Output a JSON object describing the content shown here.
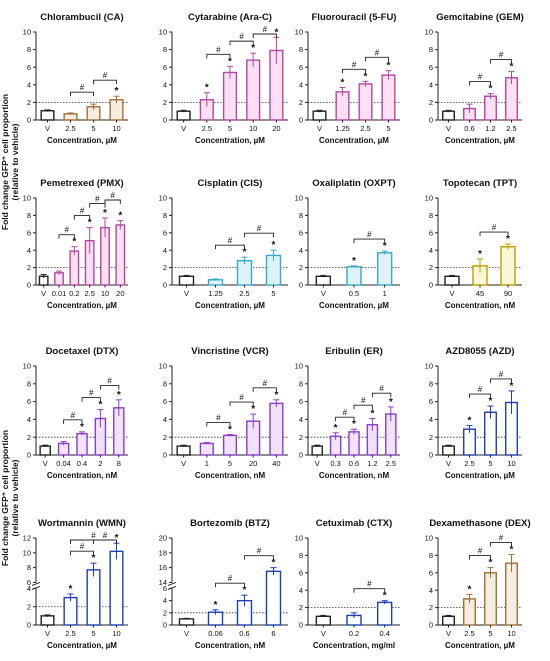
{
  "figure": {
    "ylabel_line1": "Fold change GFP⁺ cell proportion",
    "ylabel_line2": "(relative to vehicle)",
    "significance_symbol": "*",
    "comparison_symbol": "#"
  },
  "chart_data": [
    {
      "type": "bar",
      "title": "Chlorambucil (CA)",
      "xlabel": "Concentration, µM",
      "categories": [
        "V",
        "2.5",
        "5",
        "10"
      ],
      "series": [
        {
          "values": [
            1.05,
            0.7,
            1.5,
            2.3
          ],
          "errors": [
            0.1,
            0.1,
            0.3,
            0.4
          ]
        }
      ],
      "ylim": [
        0,
        10
      ],
      "yticks": [
        0,
        2,
        4,
        6,
        8,
        10
      ],
      "reference_line": 2,
      "color": "#a0703a",
      "fill": "#f5ede0",
      "sig": [
        false,
        false,
        false,
        true
      ],
      "brackets": [
        [
          1,
          2
        ],
        [
          2,
          3
        ]
      ]
    },
    {
      "type": "bar",
      "title": "Cytarabine (Ara-C)",
      "xlabel": "Concentration, µM",
      "categories": [
        "V",
        "2.5",
        "5",
        "10",
        "20"
      ],
      "series": [
        {
          "values": [
            1.0,
            2.3,
            5.4,
            6.8,
            7.9
          ],
          "errors": [
            0.1,
            0.8,
            0.7,
            0.8,
            1.5
          ]
        }
      ],
      "ylim": [
        0,
        10
      ],
      "yticks": [
        0,
        2,
        4,
        6,
        8,
        10
      ],
      "reference_line": 2,
      "color": "#b04a9c",
      "fill": "#fbdff2",
      "sig": [
        false,
        true,
        true,
        true,
        true
      ],
      "brackets": [
        [
          1,
          2
        ],
        [
          2,
          3
        ],
        [
          3,
          4
        ]
      ]
    },
    {
      "type": "bar",
      "title": "Fluorouracil (5-FU)",
      "xlabel": "Concentration, µM",
      "categories": [
        "V",
        "1.25",
        "2.5",
        "5"
      ],
      "series": [
        {
          "values": [
            1.0,
            3.2,
            4.1,
            5.1
          ],
          "errors": [
            0.1,
            0.5,
            0.3,
            0.5
          ]
        }
      ],
      "ylim": [
        0,
        10
      ],
      "yticks": [
        0,
        2,
        4,
        6,
        8,
        10
      ],
      "reference_line": 2,
      "color": "#b04a9c",
      "fill": "#fbdff2",
      "sig": [
        false,
        true,
        true,
        true
      ],
      "brackets": [
        [
          1,
          2
        ],
        [
          2,
          3
        ]
      ]
    },
    {
      "type": "bar",
      "title": "Gemcitabine (GEM)",
      "xlabel": "Concentration, µM",
      "categories": [
        "V",
        "0.6",
        "1.2",
        "2.5"
      ],
      "series": [
        {
          "values": [
            1.0,
            1.3,
            2.7,
            4.8
          ],
          "errors": [
            0.1,
            0.5,
            0.3,
            0.7
          ]
        }
      ],
      "ylim": [
        0,
        10
      ],
      "yticks": [
        0,
        2,
        4,
        6,
        8,
        10
      ],
      "reference_line": 2,
      "color": "#b04a9c",
      "fill": "#fbdff2",
      "sig": [
        false,
        false,
        true,
        true
      ],
      "brackets": [
        [
          1,
          2
        ],
        [
          2,
          3
        ]
      ]
    },
    {
      "type": "bar",
      "title": "Pemetrexed (PMX)",
      "xlabel": "Concentration, µM",
      "categories": [
        "V",
        "0.01",
        "0.2",
        "2.5",
        "10",
        "20"
      ],
      "series": [
        {
          "values": [
            1.0,
            1.4,
            3.9,
            5.1,
            6.6,
            6.9
          ],
          "errors": [
            0.2,
            0.2,
            0.5,
            1.5,
            1.1,
            0.5
          ]
        }
      ],
      "ylim": [
        0,
        10
      ],
      "yticks": [
        0,
        2,
        4,
        6,
        8,
        10
      ],
      "reference_line": 2,
      "color": "#b04a9c",
      "fill": "#fbdff2",
      "sig": [
        false,
        false,
        true,
        true,
        true,
        true
      ],
      "brackets": [
        [
          1,
          2
        ],
        [
          2,
          3
        ],
        [
          3,
          4
        ],
        [
          4,
          5
        ]
      ]
    },
    {
      "type": "bar",
      "title": "Cisplatin (CIS)",
      "xlabel": "Concentration, µM",
      "categories": [
        "V",
        "1.25",
        "2.5",
        "5"
      ],
      "series": [
        {
          "values": [
            1.0,
            0.6,
            2.8,
            3.4
          ],
          "errors": [
            0.1,
            0.1,
            0.4,
            0.6
          ]
        }
      ],
      "ylim": [
        0,
        10
      ],
      "yticks": [
        0,
        2,
        4,
        6,
        8,
        10
      ],
      "reference_line": 2,
      "color": "#3aa8c8",
      "fill": "#dff2f8",
      "sig": [
        false,
        false,
        true,
        true
      ],
      "brackets": [
        [
          1,
          2
        ],
        [
          2,
          3
        ]
      ]
    },
    {
      "type": "bar",
      "title": "Oxaliplatin (OXPT)",
      "xlabel": "Concentration, µM",
      "categories": [
        "V",
        "0.5",
        "1"
      ],
      "series": [
        {
          "values": [
            1.0,
            2.1,
            3.7
          ],
          "errors": [
            0.1,
            0.1,
            0.2
          ]
        }
      ],
      "ylim": [
        0,
        10
      ],
      "yticks": [
        0,
        2,
        4,
        6,
        8,
        10
      ],
      "reference_line": 2,
      "color": "#3aa8c8",
      "fill": "#dff2f8",
      "sig": [
        false,
        true,
        true
      ],
      "brackets": [
        [
          1,
          2
        ]
      ]
    },
    {
      "type": "bar",
      "title": "Topotecan (TPT)",
      "xlabel": "Concentration, nM",
      "categories": [
        "V",
        "45",
        "90"
      ],
      "series": [
        {
          "values": [
            1.0,
            2.2,
            4.4
          ],
          "errors": [
            0.1,
            0.8,
            0.3
          ]
        }
      ],
      "ylim": [
        0,
        10
      ],
      "yticks": [
        0,
        2,
        4,
        6,
        8,
        10
      ],
      "reference_line": 2,
      "color": "#b8a200",
      "fill": "#faf6d8",
      "sig": [
        false,
        true,
        true
      ],
      "brackets": [
        [
          1,
          2
        ]
      ]
    },
    {
      "type": "bar",
      "title": "Docetaxel (DTX)",
      "xlabel": "Concentration, nM",
      "categories": [
        "V",
        "0.04",
        "0.4",
        "2",
        "8"
      ],
      "series": [
        {
          "values": [
            1.0,
            1.3,
            2.4,
            4.1,
            5.3
          ],
          "errors": [
            0.1,
            0.2,
            0.2,
            1.0,
            0.9
          ]
        }
      ],
      "ylim": [
        0,
        10
      ],
      "yticks": [
        0,
        2,
        4,
        6,
        8,
        10
      ],
      "reference_line": 2,
      "color": "#8a3fc8",
      "fill": "#efe2fa",
      "sig": [
        false,
        false,
        true,
        true,
        true
      ],
      "brackets": [
        [
          1,
          2
        ],
        [
          2,
          3
        ],
        [
          3,
          4
        ]
      ]
    },
    {
      "type": "bar",
      "title": "Vincristine (VCR)",
      "xlabel": "Concentration, nM",
      "categories": [
        "V",
        "1",
        "5",
        "20",
        "40"
      ],
      "series": [
        {
          "values": [
            1.0,
            1.3,
            2.2,
            3.8,
            5.8
          ],
          "errors": [
            0.1,
            0.1,
            0.1,
            0.8,
            0.4
          ]
        }
      ],
      "ylim": [
        0,
        10
      ],
      "yticks": [
        0,
        2,
        4,
        6,
        8,
        10
      ],
      "reference_line": 2,
      "color": "#8a3fc8",
      "fill": "#efe2fa",
      "sig": [
        false,
        false,
        true,
        true,
        true
      ],
      "brackets": [
        [
          1,
          2
        ],
        [
          2,
          3
        ],
        [
          3,
          4
        ]
      ]
    },
    {
      "type": "bar",
      "title": "Eribulin (ER)",
      "xlabel": "Concentration, nM",
      "categories": [
        "V",
        "0.3",
        "0.6",
        "1.2",
        "2.5"
      ],
      "series": [
        {
          "values": [
            1.0,
            2.1,
            2.6,
            3.4,
            4.6
          ],
          "errors": [
            0.1,
            0.4,
            0.3,
            0.7,
            0.8
          ]
        }
      ],
      "ylim": [
        0,
        10
      ],
      "yticks": [
        0,
        2,
        4,
        6,
        8,
        10
      ],
      "reference_line": 2,
      "color": "#8a3fc8",
      "fill": "#efe2fa",
      "sig": [
        false,
        true,
        true,
        true,
        true
      ],
      "brackets": [
        [
          1,
          2
        ],
        [
          2,
          3
        ],
        [
          3,
          4
        ]
      ]
    },
    {
      "type": "bar",
      "title": "AZD8055 (AZD)",
      "xlabel": "Concentration, µM",
      "categories": [
        "V",
        "2.5",
        "5",
        "10"
      ],
      "series": [
        {
          "values": [
            1.0,
            2.9,
            4.8,
            5.9
          ],
          "errors": [
            0.1,
            0.4,
            0.7,
            1.3
          ]
        }
      ],
      "ylim": [
        0,
        10
      ],
      "yticks": [
        0,
        2,
        4,
        6,
        8,
        10
      ],
      "reference_line": 2,
      "color": "#1f3fb0",
      "fill": "#ffffff",
      "sig": [
        false,
        true,
        true,
        true
      ],
      "brackets": [
        [
          1,
          2
        ],
        [
          2,
          3
        ]
      ]
    },
    {
      "type": "bar",
      "title": "Wortmannin (WMN)",
      "xlabel": "Concentration, µM",
      "categories": [
        "V",
        "2.5",
        "5",
        "10"
      ],
      "series": [
        {
          "values": [
            1.0,
            3.0,
            7.7,
            10.2
          ],
          "errors": [
            0.1,
            0.4,
            0.9,
            1.1
          ]
        }
      ],
      "ylim": [
        0,
        12
      ],
      "yticks": [
        0,
        2,
        4,
        6,
        8,
        10,
        12
      ],
      "axis_break": [
        4,
        6
      ],
      "reference_line": 2,
      "color": "#1f3fb0",
      "fill": "#ffffff",
      "sig": [
        false,
        true,
        true,
        true
      ],
      "brackets": [
        [
          1,
          2
        ],
        [
          2,
          3
        ],
        [
          1,
          3
        ]
      ]
    },
    {
      "type": "bar",
      "title": "Bortezomib (BTZ)",
      "xlabel": "Concentration, nM",
      "categories": [
        "V",
        "0.06",
        "0.6",
        "6"
      ],
      "series": [
        {
          "values": [
            1.0,
            2.1,
            4.0,
            15.5
          ],
          "errors": [
            0.1,
            0.4,
            0.9,
            0.5
          ]
        }
      ],
      "ylim": [
        0,
        20
      ],
      "yticks": [
        0,
        2,
        4,
        6,
        14,
        16,
        18,
        20
      ],
      "axis_break": [
        6,
        14
      ],
      "reference_line": 2,
      "color": "#1f3fb0",
      "fill": "#ffffff",
      "sig": [
        false,
        true,
        true,
        true
      ],
      "brackets": [
        [
          1,
          2
        ],
        [
          2,
          3
        ]
      ]
    },
    {
      "type": "bar",
      "title": "Cetuximab (CTX)",
      "xlabel": "Concentration, mg/ml",
      "categories": [
        "V",
        "0.2",
        "0.4"
      ],
      "series": [
        {
          "values": [
            1.0,
            1.1,
            2.6
          ],
          "errors": [
            0.1,
            0.3,
            0.2
          ]
        }
      ],
      "ylim": [
        0,
        10
      ],
      "yticks": [
        0,
        2,
        4,
        6,
        8,
        10
      ],
      "reference_line": 2,
      "color": "#1f3fb0",
      "fill": "#ffffff",
      "sig": [
        false,
        false,
        true
      ],
      "brackets": [
        [
          1,
          2
        ]
      ]
    },
    {
      "type": "bar",
      "title": "Dexamethasone (DEX)",
      "xlabel": "Concentration, µM",
      "categories": [
        "V",
        "2.5",
        "5",
        "10"
      ],
      "series": [
        {
          "values": [
            1.0,
            3.0,
            6.0,
            7.1
          ],
          "errors": [
            0.1,
            0.5,
            0.6,
            1.0
          ]
        }
      ],
      "ylim": [
        0,
        10
      ],
      "yticks": [
        0,
        2,
        4,
        6,
        8,
        10
      ],
      "reference_line": 2,
      "color": "#a0703a",
      "fill": "#f5ede0",
      "sig": [
        false,
        true,
        true,
        true
      ],
      "brackets": [
        [
          1,
          2
        ],
        [
          2,
          3
        ]
      ]
    }
  ]
}
